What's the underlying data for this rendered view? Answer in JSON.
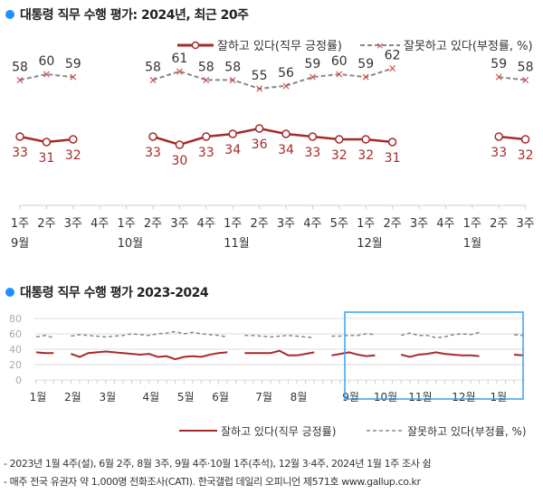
{
  "colors": {
    "approve": "#a52a2a",
    "disapprove": "#888888",
    "accent": "#1e90ff"
  },
  "chart_data": [
    {
      "type": "line",
      "title": "대통령 직무 수행 평가: 2024년, 최근 20주",
      "weeks": [
        "1주",
        "2주",
        "3주",
        "4주",
        "1주",
        "2주",
        "3주",
        "4주",
        "1주",
        "2주",
        "3주",
        "4주",
        "5주",
        "1주",
        "2주",
        "3주",
        "4주",
        "1주",
        "2주",
        "3주"
      ],
      "months": [
        {
          "label": "9월",
          "week_index": 0
        },
        {
          "label": "10월",
          "week_index": 4
        },
        {
          "label": "11월",
          "week_index": 8
        },
        {
          "label": "12월",
          "week_index": 13
        },
        {
          "label": "1월",
          "week_index": 17
        }
      ],
      "series": [
        {
          "name": "잘하고 있다(직무 긍정률)",
          "values": [
            33,
            31,
            32,
            null,
            null,
            33,
            30,
            33,
            34,
            36,
            34,
            33,
            32,
            32,
            31,
            null,
            null,
            null,
            33,
            32
          ]
        },
        {
          "name": "잘못하고 있다(부정률, %)",
          "values": [
            58,
            60,
            59,
            null,
            null,
            58,
            61,
            58,
            58,
            55,
            56,
            59,
            60,
            59,
            62,
            null,
            null,
            null,
            59,
            58
          ]
        }
      ],
      "legend": "top-right"
    },
    {
      "type": "line",
      "title": "대통령 직무 수행 평가 2023-2024",
      "ylim": [
        0,
        80
      ],
      "yticks": [
        "0",
        "20",
        "40",
        "60",
        "80"
      ],
      "months": [
        {
          "label": "1월",
          "week_index": 0
        },
        {
          "label": "2월",
          "week_index": 4
        },
        {
          "label": "3월",
          "week_index": 8
        },
        {
          "label": "4월",
          "week_index": 13
        },
        {
          "label": "5월",
          "week_index": 17
        },
        {
          "label": "6월",
          "week_index": 21
        },
        {
          "label": "7월",
          "week_index": 26
        },
        {
          "label": "8월",
          "week_index": 30
        },
        {
          "label": "9월",
          "week_index": 36
        },
        {
          "label": "10월",
          "week_index": 40
        },
        {
          "label": "11월",
          "week_index": 44
        },
        {
          "label": "12월",
          "week_index": 49
        },
        {
          "label": "1월",
          "week_index": 53
        }
      ],
      "series": [
        {
          "name": "잘하고 있다(직무 긍정률)",
          "values": [
            36,
            35,
            35,
            null,
            34,
            30,
            35,
            36,
            37,
            36,
            35,
            34,
            33,
            34,
            30,
            31,
            27,
            30,
            31,
            30,
            33,
            35,
            36,
            null,
            35,
            35,
            35,
            35,
            38,
            32,
            32,
            34,
            36,
            null,
            32,
            34,
            36,
            33,
            31,
            32,
            null,
            null,
            33,
            30,
            33,
            34,
            36,
            34,
            33,
            32,
            32,
            31,
            null,
            null,
            null,
            33,
            32
          ]
        },
        {
          "name": "잘못하고 있다(부정률, %)",
          "values": [
            56,
            58,
            55,
            null,
            57,
            59,
            58,
            57,
            56,
            57,
            58,
            60,
            59,
            58,
            60,
            61,
            63,
            60,
            62,
            60,
            59,
            58,
            56,
            null,
            58,
            58,
            57,
            56,
            57,
            58,
            57,
            56,
            55,
            null,
            57,
            57,
            58,
            58,
            60,
            59,
            null,
            null,
            58,
            61,
            58,
            58,
            55,
            56,
            59,
            60,
            59,
            62,
            null,
            null,
            null,
            59,
            58
          ]
        }
      ],
      "legend": "bottom-right",
      "highlight": "recent 20 weeks"
    }
  ],
  "footnotes": [
    "- 2023년 1월 4주(설), 6월 2주, 8월 3주, 9월 4주·10월 1주(추석), 12월 3·4주, 2024년 1월 1주 조사 쉼",
    "- 매주 전국 유권자 약 1,000명 전화조사(CATI). 한국갤럽 데일리 오피니언 제571호 www.gallup.co.kr"
  ]
}
